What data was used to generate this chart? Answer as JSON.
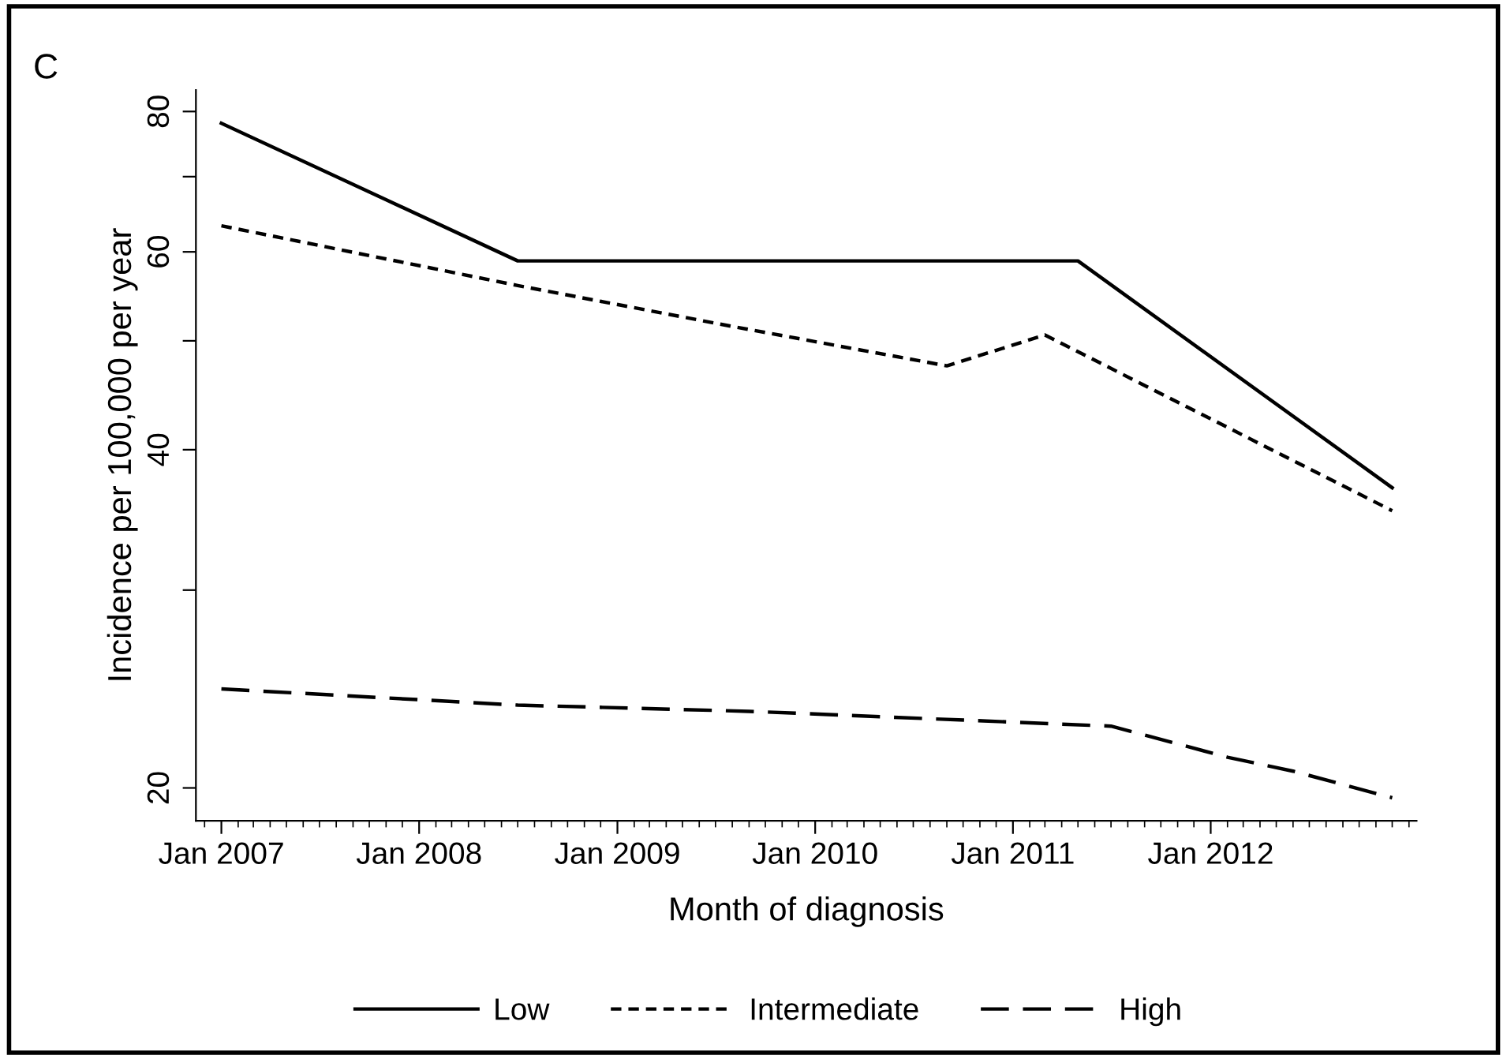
{
  "chart_data": {
    "type": "line",
    "xlabel": "Month of diagnosis",
    "ylabel": "Incidence per 100,000 per year",
    "annotations": [
      "C"
    ],
    "series": [
      {
        "name": "Low",
        "color": "#000000",
        "line_style": "solid",
        "x": [
          "2007-01",
          "2008-07",
          "2011-05",
          "2012-12"
        ],
        "values": [
          78.1,
          58.9,
          58.9,
          37.0
        ]
      },
      {
        "name": "Intermediate",
        "color": "#000000",
        "line_style": "dotted",
        "x": [
          "2007-01",
          "2008-07",
          "2009-08",
          "2010-09",
          "2011-03",
          "2012-12"
        ],
        "values": [
          63.3,
          56.0,
          51.5,
          47.5,
          50.6,
          35.3
        ]
      },
      {
        "name": "High",
        "color": "#000000",
        "line_style": "dashed",
        "x": [
          "2007-01",
          "2008-07",
          "2009-09",
          "2011-07",
          "2012-02",
          "2012-06",
          "2012-12"
        ],
        "values": [
          24.5,
          23.7,
          23.4,
          22.7,
          21.3,
          20.7,
          19.6
        ]
      }
    ],
    "log": "y",
    "xlim": [
      "2006-11-15",
      "2013-01-15"
    ],
    "xticks": [
      {
        "value": "2007-01",
        "label": "Jan 2007"
      },
      {
        "value": "2008-01",
        "label": "Jan 2008"
      },
      {
        "value": "2009-01",
        "label": "Jan 2009"
      },
      {
        "value": "2010-01",
        "label": "Jan 2010"
      },
      {
        "value": "2011-01",
        "label": "Jan 2011"
      },
      {
        "value": "2012-01",
        "label": "Jan 2012"
      }
    ],
    "ylim": [
      18.7,
      83.6
    ],
    "yticks": [
      20,
      {
        "value": 30,
        "label": null
      },
      40,
      {
        "value": 50,
        "label": null
      },
      60,
      {
        "value": 70,
        "label": null
      },
      80
    ],
    "grid": false,
    "legend": "bottom",
    "marker": "none"
  }
}
